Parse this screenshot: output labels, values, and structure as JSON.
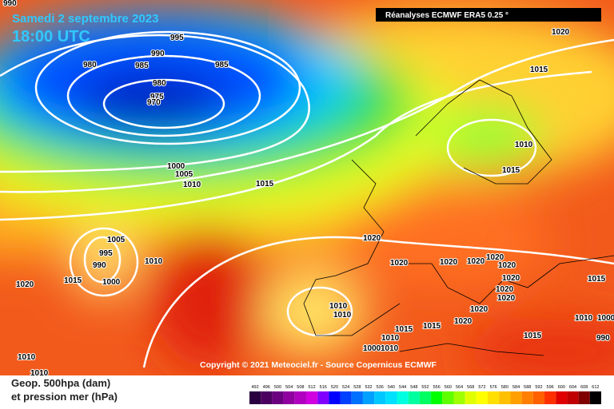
{
  "header": {
    "date": "Samedi 2 septembre 2023",
    "time": "18:00 UTC",
    "source": "Réanalyses ECMWF ERA5 0.25 °"
  },
  "copyright": "Copyright © 2021 Meteociel.fr - Source Copernicus ECMWF",
  "legend": {
    "line1": "Geop. 500hpa (dam)",
    "line2": "et pression mer (hPa)"
  },
  "scale": {
    "values": [
      492,
      496,
      500,
      504,
      508,
      512,
      516,
      520,
      524,
      528,
      532,
      536,
      540,
      544,
      548,
      552,
      556,
      560,
      564,
      568,
      572,
      576,
      580,
      584,
      588,
      592,
      596,
      600,
      604,
      608,
      612
    ],
    "colors": [
      "#2a0040",
      "#4b0060",
      "#6a0080",
      "#9000a0",
      "#b000c0",
      "#d000e0",
      "#8000ff",
      "#0000ff",
      "#0040ff",
      "#0070ff",
      "#00a0ff",
      "#00c8ff",
      "#00e0ff",
      "#00ffe0",
      "#00ffa0",
      "#00ff60",
      "#00ff00",
      "#60ff00",
      "#a0ff00",
      "#e0ff00",
      "#ffff00",
      "#ffe000",
      "#ffc000",
      "#ffa000",
      "#ff8000",
      "#ff6000",
      "#ff3000",
      "#e00000",
      "#c00000",
      "#800000",
      "#000000"
    ]
  },
  "isobar_labels": [
    990,
    995,
    990,
    980,
    985,
    985,
    980,
    975,
    970,
    1000,
    1005,
    1010,
    1015,
    1020,
    1015,
    1010,
    1015,
    1020,
    1005,
    995,
    990,
    1010,
    1015,
    1000,
    1020,
    1020,
    1020,
    1020,
    1020,
    1020,
    1020,
    1020,
    1020,
    1015,
    1010,
    1010,
    1020,
    1020,
    1015,
    1015,
    1010,
    1015,
    1010,
    1000,
    1010,
    1000,
    1010,
    1010,
    990
  ]
}
